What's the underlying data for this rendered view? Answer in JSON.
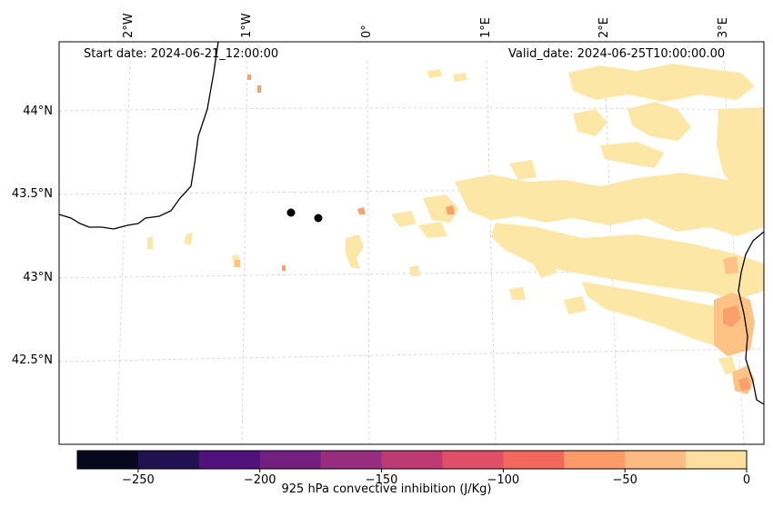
{
  "annotations": {
    "start_date": "Start date: 2024-06-21_12:00:00",
    "valid_date": "Valid_date: 2024-06-25T10:00:00.00"
  },
  "lat_ticks": [
    "44°N",
    "43.5°N",
    "43°N",
    "42.5°N"
  ],
  "lon_ticks": [
    "2°W",
    "1°W",
    "0°",
    "1°E",
    "2°E",
    "3°E"
  ],
  "colorbar": {
    "label": "925 hPa convective inhibition (J/Kg)",
    "tick_labels": [
      "−250",
      "−200",
      "−150",
      "−100",
      "−50",
      "0"
    ],
    "tick_values": [
      -250,
      -200,
      -150,
      -100,
      -50,
      0
    ],
    "range": [
      -275,
      0
    ],
    "step": 25,
    "colors": [
      "#07071d",
      "#221150",
      "#4f117b",
      "#721f81",
      "#982d80",
      "#be3a74",
      "#e04f67",
      "#f4685c",
      "#fd9a6a",
      "#febb81",
      "#fde0a0"
    ]
  },
  "chart_data": {
    "type": "heatmap",
    "variable": "925 hPa convective inhibition",
    "units": "J/Kg",
    "levels": [
      -275,
      -250,
      -225,
      -200,
      -175,
      -150,
      -125,
      -100,
      -75,
      -50,
      -25,
      0
    ],
    "lat_range": [
      42,
      44.4
    ],
    "lon_range": [
      -2.5,
      3.2
    ],
    "markers": [
      {
        "lon": -0.64,
        "lat": 43.39
      },
      {
        "lon": -0.42,
        "lat": 43.36
      }
    ]
  }
}
